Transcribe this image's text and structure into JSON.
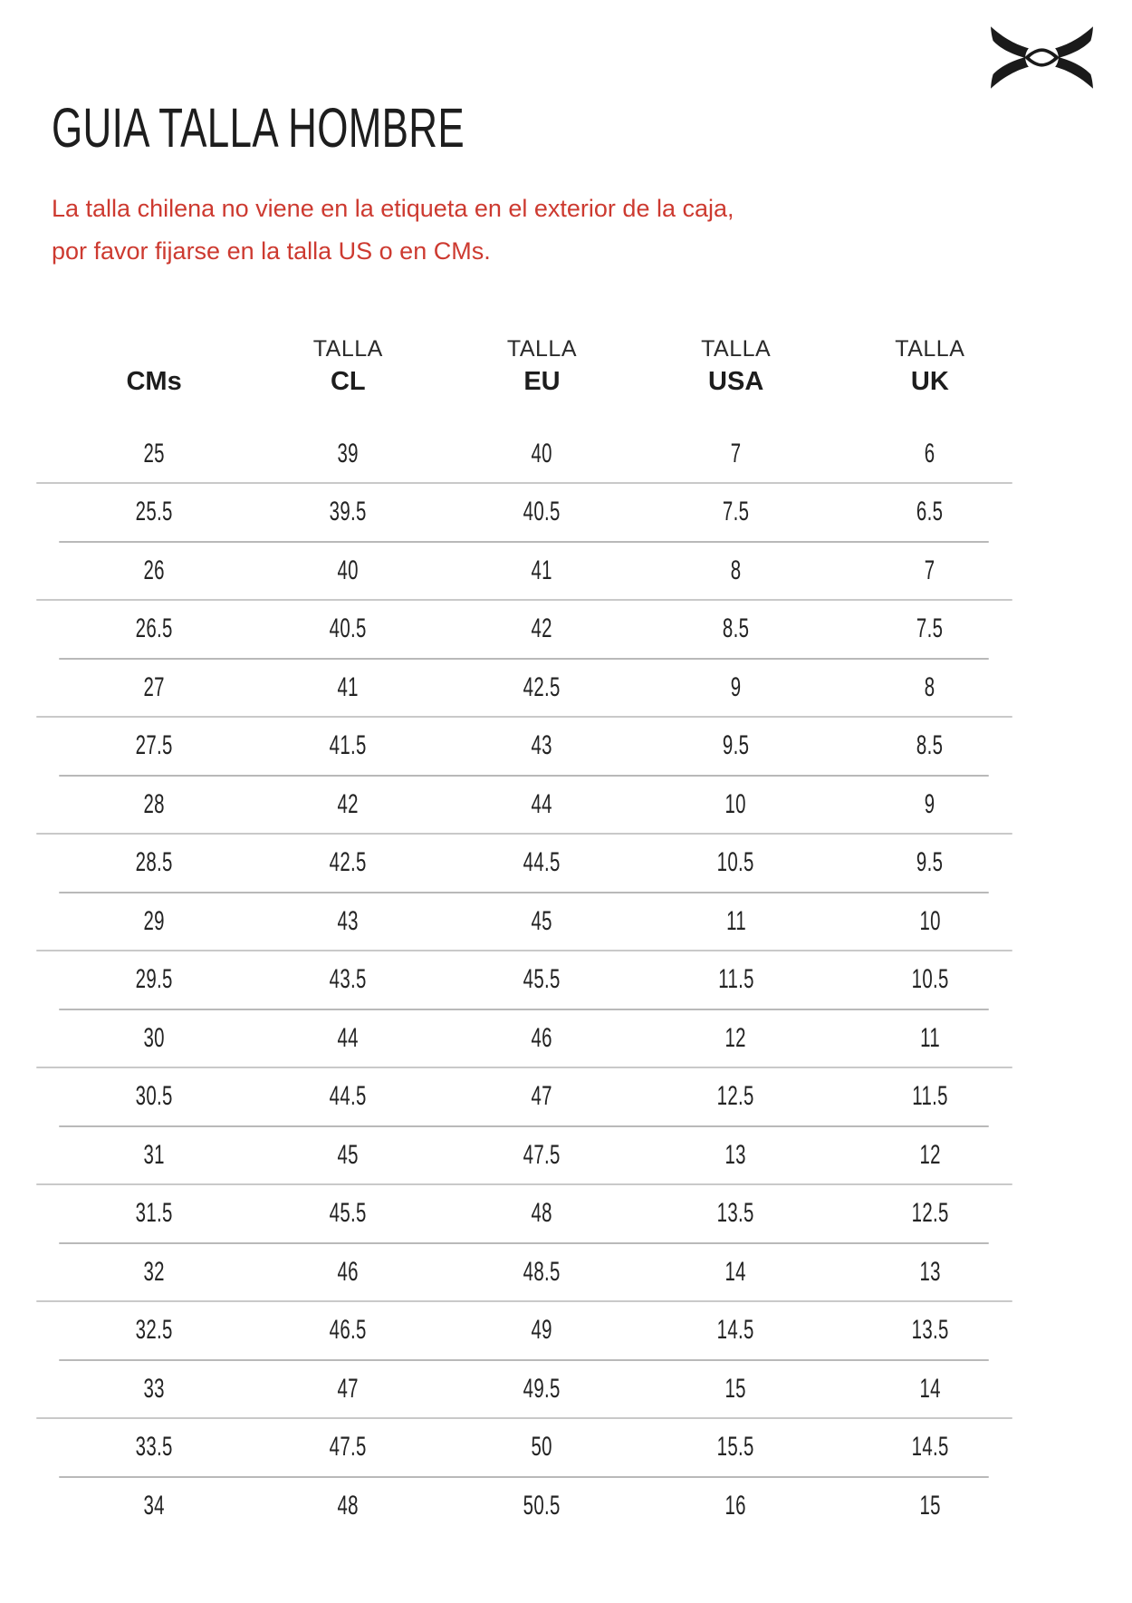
{
  "brand": {
    "logo_name": "under-armour-logo",
    "logo_color": "#1a1a1a"
  },
  "page": {
    "title": "GUIA TALLA HOMBRE"
  },
  "notice": {
    "line1": "La talla chilena no viene en la etiqueta en el exterior de la caja,",
    "line2": "por favor fijarse en la talla US o en CMs.",
    "color": "#cd3a30"
  },
  "table": {
    "header_top": [
      "",
      "TALLA",
      "TALLA",
      "TALLA",
      "TALLA"
    ],
    "header_bottom": [
      "CMs",
      "CL",
      "EU",
      "USA",
      "UK"
    ],
    "rows": [
      [
        "25",
        "39",
        "40",
        "7",
        "6"
      ],
      [
        "25.5",
        "39.5",
        "40.5",
        "7.5",
        "6.5"
      ],
      [
        "26",
        "40",
        "41",
        "8",
        "7"
      ],
      [
        "26.5",
        "40.5",
        "42",
        "8.5",
        "7.5"
      ],
      [
        "27",
        "41",
        "42.5",
        "9",
        "8"
      ],
      [
        "27.5",
        "41.5",
        "43",
        "9.5",
        "8.5"
      ],
      [
        "28",
        "42",
        "44",
        "10",
        "9"
      ],
      [
        "28.5",
        "42.5",
        "44.5",
        "10.5",
        "9.5"
      ],
      [
        "29",
        "43",
        "45",
        "11",
        "10"
      ],
      [
        "29.5",
        "43.5",
        "45.5",
        "11.5",
        "10.5"
      ],
      [
        "30",
        "44",
        "46",
        "12",
        "11"
      ],
      [
        "30.5",
        "44.5",
        "47",
        "12.5",
        "11.5"
      ],
      [
        "31",
        "45",
        "47.5",
        "13",
        "12"
      ],
      [
        "31.5",
        "45.5",
        "48",
        "13.5",
        "12.5"
      ],
      [
        "32",
        "46",
        "48.5",
        "14",
        "13"
      ],
      [
        "32.5",
        "46.5",
        "49",
        "14.5",
        "13.5"
      ],
      [
        "33",
        "47",
        "49.5",
        "15",
        "14"
      ],
      [
        "33.5",
        "47.5",
        "50",
        "15.5",
        "14.5"
      ],
      [
        "34",
        "48",
        "50.5",
        "16",
        "15"
      ]
    ]
  }
}
